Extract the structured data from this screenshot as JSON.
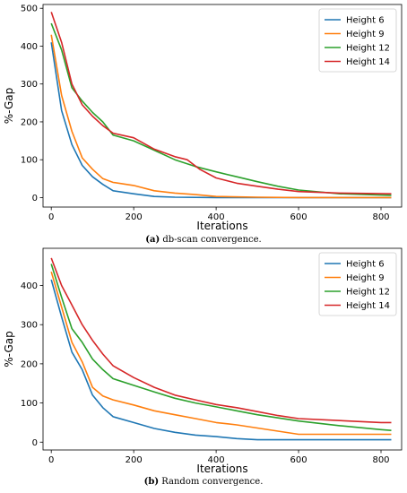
{
  "captions": [
    {
      "letter": "(a)",
      "text": "db-scan convergence."
    },
    {
      "letter": "(b)",
      "text": "Random convergence."
    }
  ],
  "chart_data": [
    {
      "type": "line",
      "ylabel": "%-Gap",
      "xlabel": "Iterations",
      "xlim": [
        -20,
        850
      ],
      "ylim": [
        -25,
        510
      ],
      "xticks": [
        0,
        200,
        400,
        600,
        800
      ],
      "yticks": [
        0,
        100,
        200,
        300,
        400,
        500
      ],
      "grid": false,
      "legend_position": "top-right",
      "series": [
        {
          "name": "Height 6",
          "color": "#1f77b4",
          "x": [
            0,
            25,
            50,
            75,
            100,
            125,
            150,
            200,
            250,
            300,
            400,
            500,
            600,
            700,
            825
          ],
          "y": [
            410,
            230,
            140,
            85,
            55,
            35,
            18,
            10,
            3,
            1,
            0,
            0,
            0,
            0,
            0
          ]
        },
        {
          "name": "Height 9",
          "color": "#ff7f0e",
          "x": [
            0,
            25,
            50,
            75,
            100,
            125,
            150,
            200,
            250,
            300,
            350,
            400,
            500,
            600,
            700,
            825
          ],
          "y": [
            430,
            270,
            175,
            105,
            75,
            50,
            40,
            32,
            18,
            12,
            8,
            3,
            1,
            0,
            0,
            0
          ]
        },
        {
          "name": "Height 12",
          "color": "#2ca02c",
          "x": [
            0,
            25,
            50,
            75,
            100,
            125,
            150,
            200,
            250,
            300,
            350,
            400,
            450,
            500,
            550,
            600,
            700,
            825
          ],
          "y": [
            460,
            390,
            290,
            255,
            225,
            200,
            165,
            150,
            125,
            100,
            82,
            68,
            55,
            42,
            30,
            20,
            10,
            6
          ]
        },
        {
          "name": "Height 14",
          "color": "#d62728",
          "x": [
            0,
            25,
            50,
            75,
            100,
            125,
            150,
            200,
            250,
            300,
            330,
            360,
            400,
            450,
            500,
            550,
            600,
            700,
            825
          ],
          "y": [
            490,
            410,
            300,
            245,
            215,
            190,
            170,
            158,
            128,
            108,
            100,
            75,
            52,
            38,
            30,
            22,
            16,
            12,
            10
          ]
        }
      ]
    },
    {
      "type": "line",
      "ylabel": "%-Gap",
      "xlabel": "Iterations",
      "xlim": [
        -20,
        850
      ],
      "ylim": [
        -20,
        495
      ],
      "xticks": [
        0,
        200,
        400,
        600,
        800
      ],
      "yticks": [
        0,
        100,
        200,
        300,
        400
      ],
      "grid": false,
      "legend_position": "top-right",
      "series": [
        {
          "name": "Height 6",
          "color": "#1f77b4",
          "x": [
            0,
            25,
            50,
            75,
            100,
            125,
            150,
            200,
            250,
            300,
            350,
            400,
            450,
            500,
            600,
            700,
            825
          ],
          "y": [
            415,
            320,
            230,
            185,
            120,
            88,
            65,
            50,
            35,
            25,
            18,
            14,
            9,
            6,
            6,
            6,
            6
          ]
        },
        {
          "name": "Height 9",
          "color": "#ff7f0e",
          "x": [
            0,
            25,
            50,
            75,
            100,
            125,
            150,
            200,
            250,
            300,
            350,
            400,
            450,
            500,
            550,
            600,
            700,
            825
          ],
          "y": [
            435,
            345,
            255,
            205,
            140,
            118,
            108,
            95,
            80,
            70,
            60,
            50,
            44,
            36,
            28,
            20,
            20,
            20
          ]
        },
        {
          "name": "Height 12",
          "color": "#2ca02c",
          "x": [
            0,
            25,
            50,
            75,
            100,
            125,
            150,
            200,
            250,
            300,
            350,
            400,
            450,
            500,
            550,
            600,
            700,
            800,
            825
          ],
          "y": [
            455,
            370,
            290,
            255,
            212,
            185,
            162,
            145,
            128,
            112,
            100,
            90,
            80,
            70,
            62,
            54,
            42,
            32,
            30
          ]
        },
        {
          "name": "Height 14",
          "color": "#d62728",
          "x": [
            0,
            25,
            50,
            75,
            100,
            125,
            150,
            200,
            250,
            300,
            350,
            400,
            450,
            500,
            550,
            600,
            700,
            800,
            825
          ],
          "y": [
            470,
            400,
            350,
            300,
            260,
            225,
            195,
            165,
            140,
            120,
            108,
            96,
            88,
            78,
            68,
            60,
            55,
            50,
            50
          ]
        }
      ]
    }
  ]
}
